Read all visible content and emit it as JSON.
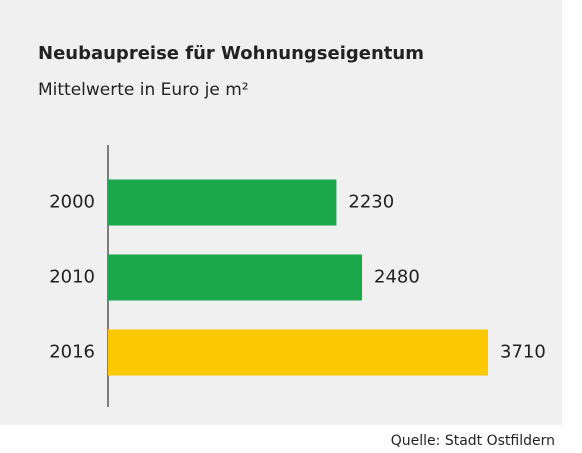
{
  "chart_data": {
    "type": "bar",
    "orientation": "horizontal",
    "title": "Neubaupreise für Wohnungseigentum",
    "subtitle": "Mittelwerte in Euro je m²",
    "source": "Quelle: Stadt Ostfildern",
    "categories": [
      "2000",
      "2010",
      "2016"
    ],
    "values": [
      2230,
      2480,
      3710
    ],
    "colors": [
      "#1aa84a",
      "#1aa84a",
      "#fcc800"
    ]
  }
}
